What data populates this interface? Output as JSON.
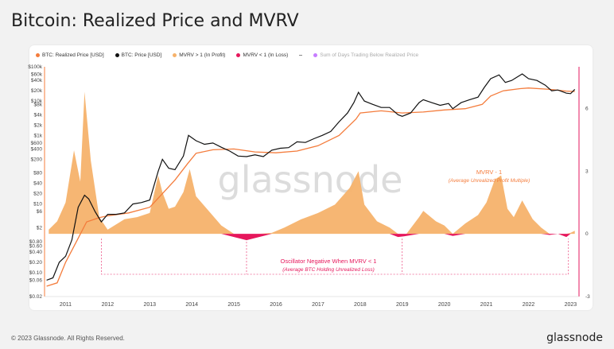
{
  "page": {
    "title": "Bitcoin: Realized Price and MVRV",
    "footer": "© 2023 Glassnode. All Rights Reserved.",
    "brand": "glassnode",
    "watermark": "glassnode"
  },
  "legend": [
    {
      "label": "BTC: Realized Price [USD]",
      "color": "#f47c3c",
      "kind": "dot"
    },
    {
      "label": "BTC: Price [USD]",
      "color": "#111111",
      "kind": "dot"
    },
    {
      "label": "MVRV > 1 (In Profit)",
      "color": "#f6b26b",
      "kind": "dot"
    },
    {
      "label": "MVRV < 1 (In Loss)",
      "color": "#e6175c",
      "kind": "dot"
    },
    {
      "label": "",
      "color": "#888888",
      "kind": "dash"
    },
    {
      "label": "Sum of Days Trading Below Realized Price",
      "color": "#c77dff",
      "kind": "dot",
      "muted": true
    }
  ],
  "annotations": {
    "mvrv_title": "MVRV - 1",
    "mvrv_sub": "(Average Unrealized Profit Multiple)",
    "osc_title": "Oscillator Negative When MVRV < 1",
    "osc_sub": "(Average BTC Holding Unrealized Loss)"
  },
  "chart_data": {
    "type": "line",
    "title": "Bitcoin: Realized Price and MVRV",
    "x_ticks": [
      "2011",
      "2012",
      "2013",
      "2014",
      "2015",
      "2016",
      "2017",
      "2018",
      "2019",
      "2020",
      "2021",
      "2022",
      "2023"
    ],
    "x_range": [
      2010.5,
      2023.2
    ],
    "y_left_ticks": [
      "$100k",
      "$60k",
      "$40k",
      "$20k",
      "$10k",
      "$8k",
      "$4k",
      "$2k",
      "$1k",
      "$600",
      "$400",
      "$200",
      "$80",
      "$40",
      "$20",
      "$10",
      "$6",
      "$2",
      "$0.80",
      "$0.60",
      "$0.40",
      "$0.20",
      "$0.10",
      "$0.06",
      "$0.02"
    ],
    "y_left_scale": "log",
    "y_left_range": [
      0.02,
      100000
    ],
    "y_right_ticks": [
      "6",
      "3",
      "0",
      "-3"
    ],
    "y_right_range": [
      -3,
      8
    ],
    "series": [
      {
        "name": "BTC: Price [USD]",
        "color": "#111111",
        "x": [
          2010.55,
          2010.7,
          2010.85,
          2011.0,
          2011.15,
          2011.3,
          2011.45,
          2011.55,
          2011.7,
          2011.85,
          2012.0,
          2012.2,
          2012.4,
          2012.6,
          2012.8,
          2013.0,
          2013.2,
          2013.3,
          2013.45,
          2013.6,
          2013.8,
          2013.92,
          2014.1,
          2014.3,
          2014.5,
          2014.7,
          2014.9,
          2015.1,
          2015.3,
          2015.5,
          2015.7,
          2015.9,
          2016.1,
          2016.3,
          2016.5,
          2016.7,
          2016.9,
          2017.1,
          2017.3,
          2017.5,
          2017.7,
          2017.85,
          2017.96,
          2018.1,
          2018.3,
          2018.5,
          2018.7,
          2018.9,
          2019.0,
          2019.2,
          2019.4,
          2019.5,
          2019.7,
          2019.9,
          2020.1,
          2020.2,
          2020.4,
          2020.6,
          2020.8,
          2020.95,
          2021.1,
          2021.3,
          2021.45,
          2021.6,
          2021.85,
          2022.0,
          2022.2,
          2022.4,
          2022.55,
          2022.7,
          2022.9,
          2023.0,
          2023.1
        ],
        "y": [
          0.06,
          0.07,
          0.2,
          0.3,
          0.9,
          8,
          18,
          14,
          6,
          3,
          5,
          5,
          5.5,
          10,
          11,
          13,
          90,
          200,
          110,
          100,
          250,
          1000,
          700,
          550,
          600,
          450,
          350,
          250,
          240,
          270,
          240,
          370,
          420,
          440,
          650,
          620,
          800,
          1000,
          1300,
          2500,
          4500,
          9000,
          18000,
          10000,
          8000,
          6500,
          6500,
          4000,
          3600,
          4500,
          9000,
          11000,
          9000,
          7500,
          8500,
          6000,
          9000,
          11000,
          13000,
          25000,
          45000,
          58000,
          35000,
          40000,
          62000,
          45000,
          40000,
          29000,
          20000,
          21000,
          17000,
          16500,
          22000
        ]
      },
      {
        "name": "BTC: Realized Price [USD]",
        "color": "#f47c3c",
        "x": [
          2010.55,
          2010.8,
          2011.0,
          2011.3,
          2011.5,
          2011.8,
          2012.0,
          2012.5,
          2013.0,
          2013.3,
          2013.6,
          2013.9,
          2014.1,
          2014.5,
          2015.0,
          2015.5,
          2016.0,
          2016.5,
          2017.0,
          2017.5,
          2017.9,
          2018.0,
          2018.5,
          2019.0,
          2019.5,
          2020.0,
          2020.5,
          2020.9,
          2021.1,
          2021.4,
          2021.8,
          2022.0,
          2022.5,
          2022.9,
          2023.1
        ],
        "y": [
          0.04,
          0.05,
          0.2,
          1,
          3,
          4,
          4.5,
          5.5,
          8,
          20,
          50,
          150,
          300,
          380,
          400,
          330,
          310,
          350,
          500,
          1000,
          3000,
          4500,
          5200,
          4500,
          4800,
          5500,
          6000,
          8000,
          14000,
          20000,
          23000,
          24000,
          22000,
          19500,
          19000
        ]
      },
      {
        "name": "MVRV - 1",
        "color": "#f6b26b",
        "x": [
          2010.6,
          2010.8,
          2011.0,
          2011.2,
          2011.35,
          2011.45,
          2011.6,
          2011.8,
          2012.0,
          2012.4,
          2012.7,
          2013.0,
          2013.2,
          2013.3,
          2013.45,
          2013.6,
          2013.8,
          2013.95,
          2014.1,
          2014.4,
          2014.7,
          2015.0,
          2015.3,
          2015.6,
          2015.9,
          2016.2,
          2016.6,
          2017.0,
          2017.4,
          2017.75,
          2017.96,
          2018.1,
          2018.4,
          2018.7,
          2018.9,
          2019.1,
          2019.4,
          2019.5,
          2019.8,
          2020.0,
          2020.2,
          2020.5,
          2020.8,
          2021.0,
          2021.2,
          2021.35,
          2021.5,
          2021.65,
          2021.85,
          2022.1,
          2022.3,
          2022.5,
          2022.7,
          2022.9,
          2023.0,
          2023.1
        ],
        "y": [
          0.2,
          0.6,
          1.5,
          4.0,
          2.5,
          6.8,
          3.5,
          0.8,
          0.2,
          0.7,
          0.8,
          1.0,
          2.8,
          2.0,
          1.2,
          1.3,
          2.0,
          3.1,
          1.8,
          1.1,
          0.4,
          -0.15,
          -0.3,
          -0.15,
          0.05,
          0.3,
          0.7,
          1.0,
          1.4,
          2.2,
          3.0,
          1.4,
          0.6,
          0.3,
          -0.15,
          -0.1,
          0.8,
          1.1,
          0.6,
          0.4,
          -0.1,
          0.5,
          0.9,
          1.5,
          2.6,
          2.8,
          1.2,
          0.8,
          1.6,
          0.7,
          0.3,
          -0.05,
          0.0,
          -0.15,
          0.05,
          0.15
        ]
      }
    ],
    "watermark": "glassnode"
  }
}
